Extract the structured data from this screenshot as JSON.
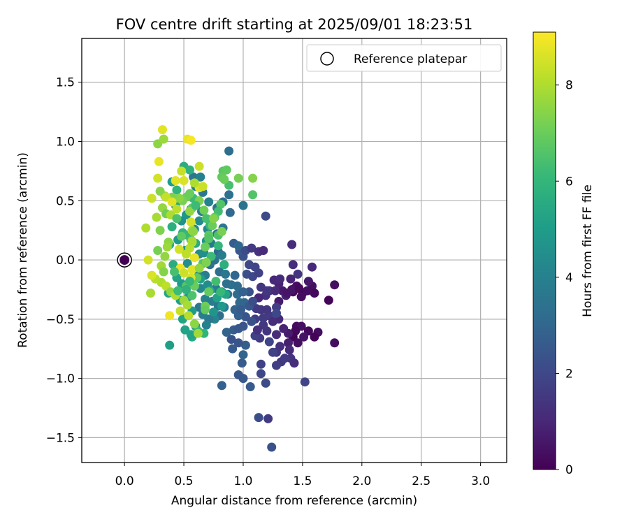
{
  "chart_data": {
    "type": "scatter",
    "title": "FOV centre drift starting at 2025/09/01 18:23:51",
    "xlabel": "Angular distance from reference (arcmin)",
    "ylabel": "Rotation from reference (arcmin)",
    "xlim": [
      -0.36,
      3.22
    ],
    "ylim": [
      -1.71,
      1.87
    ],
    "x_ticks": [
      "0.0",
      "0.5",
      "1.0",
      "1.5",
      "2.0",
      "2.5",
      "3.0"
    ],
    "x_tick_values": [
      0.0,
      0.5,
      1.0,
      1.5,
      2.0,
      2.5,
      3.0
    ],
    "y_ticks": [
      "1.5",
      "1.0",
      "0.5",
      "0.0",
      "−0.5",
      "−1.0",
      "−1.5"
    ],
    "y_tick_values": [
      1.5,
      1.0,
      0.5,
      0.0,
      -0.5,
      -1.0,
      -1.5
    ],
    "grid": true,
    "legend": {
      "placement": "top-right",
      "entries": [
        "Reference platepar"
      ]
    },
    "reference_point": {
      "x": 0.0,
      "y": 0.0
    },
    "colorbar": {
      "label": "Hours from first FF file",
      "ticks": [
        "0",
        "2",
        "4",
        "6",
        "8"
      ],
      "tick_values": [
        0,
        2,
        4,
        6,
        8
      ],
      "range": [
        0,
        9.1
      ],
      "colormap": "viridis"
    },
    "colormap_stops": [
      "#440154",
      "#482878",
      "#3e4989",
      "#31688e",
      "#26828e",
      "#1f9e89",
      "#35b779",
      "#6ece58",
      "#b5de2b",
      "#fde725"
    ],
    "points": [
      [
        1.42,
        -0.27,
        0.2
      ],
      [
        1.45,
        -0.22,
        0.3
      ],
      [
        1.5,
        -0.28,
        0.1
      ],
      [
        1.58,
        -0.22,
        0.4
      ],
      [
        1.6,
        -0.28,
        0.2
      ],
      [
        1.72,
        -0.34,
        0.1
      ],
      [
        1.77,
        -0.21,
        0.4
      ],
      [
        1.41,
        -0.25,
        0.5
      ],
      [
        1.33,
        -0.26,
        0.6
      ],
      [
        1.36,
        -0.3,
        0.8
      ],
      [
        1.3,
        -0.35,
        0.7
      ],
      [
        1.3,
        -0.2,
        0.9
      ],
      [
        1.26,
        -0.17,
        1.0
      ],
      [
        1.27,
        -0.26,
        1.1
      ],
      [
        1.22,
        -0.26,
        1.2
      ],
      [
        1.19,
        -0.3,
        1.3
      ],
      [
        1.13,
        -0.32,
        1.0
      ],
      [
        1.31,
        -0.16,
        1.1
      ],
      [
        1.4,
        -0.16,
        0.9
      ],
      [
        1.46,
        -0.12,
        1.4
      ],
      [
        1.42,
        -0.04,
        1.2
      ],
      [
        1.58,
        -0.06,
        1.0
      ],
      [
        1.49,
        -0.31,
        0.3
      ],
      [
        1.37,
        -0.28,
        0.5
      ],
      [
        1.47,
        -0.24,
        0.2
      ],
      [
        1.54,
        -0.26,
        0.3
      ],
      [
        1.55,
        -0.18,
        0.6
      ],
      [
        1.45,
        -0.56,
        0.3
      ],
      [
        1.49,
        -0.56,
        0.4
      ],
      [
        1.44,
        -0.6,
        0.2
      ],
      [
        1.42,
        -0.65,
        0.1
      ],
      [
        1.46,
        -0.7,
        0.3
      ],
      [
        1.55,
        -0.6,
        0.2
      ],
      [
        1.63,
        -0.61,
        0.3
      ],
      [
        1.6,
        -0.65,
        0.1
      ],
      [
        1.77,
        -0.7,
        0.3
      ],
      [
        1.51,
        -0.65,
        0.5
      ],
      [
        1.38,
        -0.62,
        0.7
      ],
      [
        1.34,
        -0.58,
        0.9
      ],
      [
        1.38,
        -0.7,
        0.8
      ],
      [
        1.3,
        -0.5,
        1.1
      ],
      [
        1.28,
        -0.63,
        1.2
      ],
      [
        1.31,
        -0.73,
        1.3
      ],
      [
        1.28,
        -0.78,
        1.4
      ],
      [
        1.32,
        -0.86,
        1.5
      ],
      [
        1.28,
        -0.89,
        1.7
      ],
      [
        1.4,
        -0.83,
        1.4
      ],
      [
        1.43,
        -0.87,
        1.2
      ],
      [
        1.39,
        -0.76,
        1.1
      ],
      [
        1.35,
        -0.83,
        1.6
      ],
      [
        1.25,
        -0.78,
        1.8
      ],
      [
        1.22,
        -0.69,
        1.9
      ],
      [
        1.2,
        -0.6,
        1.4
      ],
      [
        1.17,
        -0.55,
        1.5
      ],
      [
        1.14,
        -0.66,
        1.6
      ],
      [
        1.1,
        -0.64,
        1.8
      ],
      [
        1.12,
        -0.59,
        1.3
      ],
      [
        1.17,
        -0.49,
        1.6
      ],
      [
        1.1,
        -0.5,
        1.7
      ],
      [
        1.22,
        -0.47,
        1.6
      ],
      [
        1.25,
        -0.52,
        1.2
      ],
      [
        1.28,
        -0.4,
        1.7
      ],
      [
        1.28,
        -0.45,
        2.0
      ],
      [
        1.2,
        -0.42,
        1.5
      ],
      [
        1.15,
        -0.42,
        1.4
      ],
      [
        1.11,
        -0.41,
        1.6
      ],
      [
        1.15,
        -0.88,
        1.8
      ],
      [
        1.15,
        -0.96,
        2.0
      ],
      [
        1.19,
        -1.04,
        2.1
      ],
      [
        1.52,
        -1.03,
        1.9
      ],
      [
        1.13,
        -1.33,
        2.2
      ],
      [
        1.21,
        -1.34,
        1.6
      ],
      [
        1.24,
        -1.58,
        2.3
      ],
      [
        1.0,
        -1.0,
        2.5
      ],
      [
        1.06,
        -1.07,
        2.6
      ],
      [
        0.96,
        -0.97,
        2.5
      ],
      [
        0.82,
        -1.06,
        2.8
      ],
      [
        0.99,
        -0.87,
        2.6
      ],
      [
        1.0,
        -0.8,
        2.9
      ],
      [
        1.02,
        -0.72,
        2.7
      ],
      [
        0.96,
        -0.7,
        2.4
      ],
      [
        0.91,
        -0.75,
        2.6
      ],
      [
        0.9,
        -0.67,
        2.3
      ],
      [
        0.86,
        -0.61,
        2.9
      ],
      [
        0.92,
        -0.59,
        2.7
      ],
      [
        0.96,
        -0.58,
        2.5
      ],
      [
        1.0,
        -0.56,
        2.4
      ],
      [
        1.07,
        -0.52,
        2.3
      ],
      [
        1.02,
        -0.48,
        2.4
      ],
      [
        0.96,
        -0.47,
        2.8
      ],
      [
        0.93,
        -0.42,
        2.9
      ],
      [
        0.97,
        -0.36,
        3.1
      ],
      [
        1.01,
        -0.36,
        3.0
      ],
      [
        0.95,
        -0.29,
        3.2
      ],
      [
        0.98,
        -0.42,
        2.6
      ],
      [
        1.05,
        -0.39,
        2.5
      ],
      [
        1.08,
        -0.35,
        2.2
      ],
      [
        1.05,
        -0.27,
        2.3
      ],
      [
        1.0,
        -0.27,
        2.8
      ],
      [
        0.9,
        -0.21,
        3.3
      ],
      [
        0.95,
        -0.22,
        3.2
      ],
      [
        0.93,
        -0.13,
        3.0
      ],
      [
        1.03,
        -0.12,
        2.2
      ],
      [
        1.08,
        -0.14,
        2.0
      ],
      [
        1.13,
        -0.11,
        1.8
      ],
      [
        1.15,
        -0.23,
        1.4
      ],
      [
        1.2,
        -0.26,
        1.5
      ],
      [
        1.1,
        -0.06,
        1.9
      ],
      [
        1.05,
        -0.04,
        2.0
      ],
      [
        1.0,
        0.03,
        2.3
      ],
      [
        0.97,
        0.08,
        2.5
      ],
      [
        0.92,
        0.14,
        2.7
      ],
      [
        0.96,
        0.12,
        3.0
      ],
      [
        1.02,
        0.08,
        2.1
      ],
      [
        1.07,
        0.1,
        1.6
      ],
      [
        1.13,
        0.07,
        1.3
      ],
      [
        1.17,
        0.08,
        1.1
      ],
      [
        1.41,
        0.13,
        1.2
      ],
      [
        1.19,
        0.37,
        2.1
      ],
      [
        1.0,
        0.46,
        3.5
      ],
      [
        0.88,
        0.92,
        3.3
      ],
      [
        0.88,
        0.55,
        3.4
      ],
      [
        0.83,
        0.27,
        3.6
      ],
      [
        0.78,
        0.22,
        3.2
      ],
      [
        0.73,
        0.14,
        3.7
      ],
      [
        0.79,
        0.07,
        3.1
      ],
      [
        0.82,
        0.04,
        3.8
      ],
      [
        0.76,
        0.0,
        3.5
      ],
      [
        0.72,
        -0.04,
        3.4
      ],
      [
        0.8,
        -0.1,
        3.3
      ],
      [
        0.85,
        -0.12,
        3.6
      ],
      [
        0.86,
        -0.2,
        3.4
      ],
      [
        0.87,
        -0.29,
        3.7
      ],
      [
        0.82,
        -0.27,
        3.5
      ],
      [
        0.77,
        -0.24,
        3.8
      ],
      [
        0.74,
        -0.35,
        3.9
      ],
      [
        0.79,
        -0.39,
        3.6
      ],
      [
        0.84,
        -0.4,
        3.8
      ],
      [
        0.8,
        -0.47,
        3.2
      ],
      [
        0.76,
        -0.5,
        4.1
      ],
      [
        0.71,
        -0.5,
        3.7
      ],
      [
        0.66,
        -0.46,
        3.9
      ],
      [
        0.69,
        -0.55,
        4.0
      ],
      [
        0.63,
        -0.4,
        3.6
      ],
      [
        0.68,
        -0.33,
        4.0
      ],
      [
        0.64,
        -0.24,
        4.2
      ],
      [
        0.7,
        -0.21,
        4.4
      ],
      [
        0.68,
        -0.13,
        3.9
      ],
      [
        0.62,
        -0.09,
        4.1
      ],
      [
        0.63,
        0.05,
        4.3
      ],
      [
        0.67,
        0.06,
        4.5
      ],
      [
        0.7,
        0.26,
        4.2
      ],
      [
        0.63,
        0.33,
        4.4
      ],
      [
        0.65,
        0.41,
        3.8
      ],
      [
        0.71,
        0.49,
        4.0
      ],
      [
        0.66,
        0.57,
        3.6
      ],
      [
        0.6,
        0.62,
        3.9
      ],
      [
        0.58,
        0.7,
        3.6
      ],
      [
        0.64,
        0.7,
        4.0
      ],
      [
        0.73,
        0.31,
        3.5
      ],
      [
        0.78,
        0.44,
        3.3
      ],
      [
        0.83,
        0.49,
        3.4
      ],
      [
        0.89,
        0.4,
        3.1
      ],
      [
        0.69,
        0.16,
        4.6
      ],
      [
        0.59,
        0.26,
        4.3
      ],
      [
        0.56,
        0.43,
        4.5
      ],
      [
        0.52,
        0.38,
        4.8
      ],
      [
        0.48,
        0.33,
        4.6
      ],
      [
        0.45,
        0.17,
        4.9
      ],
      [
        0.51,
        0.08,
        4.7
      ],
      [
        0.53,
        -0.03,
        4.5
      ],
      [
        0.48,
        -0.2,
        4.9
      ],
      [
        0.54,
        -0.31,
        5.0
      ],
      [
        0.47,
        -0.34,
        5.1
      ],
      [
        0.57,
        -0.43,
        5.0
      ],
      [
        0.6,
        -0.56,
        4.8
      ],
      [
        0.51,
        -0.59,
        5.2
      ],
      [
        0.49,
        -0.5,
        5.3
      ],
      [
        0.57,
        -0.65,
        5.5
      ],
      [
        0.56,
        -0.63,
        5.2
      ],
      [
        0.38,
        -0.72,
        5.1
      ],
      [
        0.37,
        -0.28,
        5.4
      ],
      [
        0.44,
        -0.15,
        5.3
      ],
      [
        0.41,
        -0.04,
        5.6
      ],
      [
        0.38,
        0.13,
        5.5
      ],
      [
        0.4,
        0.28,
        5.7
      ],
      [
        0.43,
        0.46,
        5.2
      ],
      [
        0.44,
        0.59,
        5.9
      ],
      [
        0.4,
        0.66,
        5.0
      ],
      [
        0.5,
        0.79,
        5.6
      ],
      [
        0.55,
        0.76,
        5.8
      ],
      [
        0.49,
        0.23,
        5.9
      ],
      [
        0.53,
        0.21,
        6.1
      ],
      [
        0.56,
        0.17,
        6.3
      ],
      [
        0.6,
        0.14,
        5.6
      ],
      [
        0.64,
        -0.16,
        5.1
      ],
      [
        0.72,
        -0.26,
        5.4
      ],
      [
        0.78,
        -0.32,
        5.2
      ],
      [
        0.82,
        -0.39,
        4.9
      ],
      [
        0.85,
        -0.29,
        5.3
      ],
      [
        0.75,
        -0.44,
        4.7
      ],
      [
        0.67,
        -0.62,
        5.9
      ],
      [
        0.62,
        -0.6,
        6.1
      ],
      [
        0.88,
        0.63,
        6.4
      ],
      [
        0.83,
        0.75,
        6.7
      ],
      [
        0.82,
        0.7,
        6.9
      ],
      [
        0.84,
        0.68,
        7.0
      ],
      [
        0.86,
        0.76,
        6.8
      ],
      [
        0.81,
        0.47,
        6.6
      ],
      [
        0.79,
        0.41,
        6.3
      ],
      [
        0.72,
        0.29,
        6.0
      ],
      [
        0.69,
        0.35,
        6.4
      ],
      [
        0.76,
        0.36,
        6.7
      ],
      [
        0.79,
        0.21,
        6.5
      ],
      [
        0.71,
        0.21,
        6.8
      ],
      [
        0.68,
        0.11,
        7.0
      ],
      [
        0.73,
        0.03,
        6.2
      ],
      [
        0.66,
        -0.03,
        6.6
      ],
      [
        0.61,
        -0.15,
        6.8
      ],
      [
        0.59,
        -0.22,
        7.0
      ],
      [
        0.57,
        -0.3,
        6.5
      ],
      [
        0.68,
        -0.39,
        7.1
      ],
      [
        0.71,
        -0.27,
        6.9
      ],
      [
        0.77,
        -0.18,
        6.3
      ],
      [
        0.79,
        0.12,
        6.0
      ],
      [
        0.96,
        0.69,
        7.2
      ],
      [
        1.08,
        0.69,
        7.4
      ],
      [
        1.08,
        0.55,
        6.6
      ],
      [
        0.81,
        -0.27,
        6.1
      ],
      [
        0.84,
        -0.04,
        5.7
      ],
      [
        0.58,
        0.52,
        6.2
      ],
      [
        0.57,
        0.44,
        6.8
      ],
      [
        0.52,
        0.53,
        7.0
      ],
      [
        0.49,
        0.5,
        7.2
      ],
      [
        0.46,
        0.52,
        7.5
      ],
      [
        0.4,
        0.53,
        7.3
      ],
      [
        0.34,
        0.54,
        7.8
      ],
      [
        0.3,
        0.58,
        7.4
      ],
      [
        0.32,
        0.44,
        7.6
      ],
      [
        0.35,
        0.39,
        7.1
      ],
      [
        0.27,
        0.36,
        7.9
      ],
      [
        0.3,
        0.25,
        7.3
      ],
      [
        0.37,
        0.15,
        7.5
      ],
      [
        0.36,
        0.11,
        7.7
      ],
      [
        0.28,
        0.08,
        7.2
      ],
      [
        0.34,
        0.03,
        7.6
      ],
      [
        0.31,
        -0.05,
        7.8
      ],
      [
        0.33,
        -0.1,
        7.4
      ],
      [
        0.31,
        -0.19,
        8.0
      ],
      [
        0.26,
        -0.16,
        8.1
      ],
      [
        0.22,
        -0.28,
        7.9
      ],
      [
        0.35,
        -0.22,
        8.2
      ],
      [
        0.39,
        -0.27,
        7.6
      ],
      [
        0.43,
        -0.3,
        8.0
      ],
      [
        0.5,
        -0.34,
        7.7
      ],
      [
        0.53,
        -0.38,
        7.9
      ],
      [
        0.47,
        -0.43,
        8.3
      ],
      [
        0.54,
        -0.47,
        8.1
      ],
      [
        0.59,
        -0.54,
        7.5
      ],
      [
        0.62,
        -0.62,
        7.8
      ],
      [
        0.38,
        -0.47,
        8.9
      ],
      [
        0.2,
        0.0,
        8.5
      ],
      [
        0.23,
        -0.13,
        8.6
      ],
      [
        0.18,
        0.27,
        8.0
      ],
      [
        0.23,
        0.52,
        8.4
      ],
      [
        0.28,
        0.69,
        8.5
      ],
      [
        0.28,
        0.98,
        7.5
      ],
      [
        0.33,
        1.02,
        7.7
      ],
      [
        0.29,
        0.83,
        8.8
      ],
      [
        0.32,
        1.1,
        8.7
      ],
      [
        0.53,
        1.02,
        8.8
      ],
      [
        0.56,
        1.01,
        9.0
      ],
      [
        0.63,
        0.79,
        8.4
      ],
      [
        0.63,
        0.61,
        8.7
      ],
      [
        0.66,
        0.62,
        8.4
      ],
      [
        0.59,
        0.65,
        8.0
      ],
      [
        0.48,
        0.75,
        8.3
      ],
      [
        0.5,
        0.67,
        8.6
      ],
      [
        0.43,
        0.67,
        8.7
      ],
      [
        0.35,
        0.53,
        8.3
      ],
      [
        0.4,
        0.49,
        8.7
      ],
      [
        0.44,
        0.43,
        8.2
      ],
      [
        0.39,
        0.38,
        8.0
      ],
      [
        0.55,
        0.41,
        7.6
      ],
      [
        0.56,
        0.32,
        8.5
      ],
      [
        0.57,
        0.25,
        7.9
      ],
      [
        0.57,
        0.15,
        8.3
      ],
      [
        0.55,
        0.1,
        8.1
      ],
      [
        0.46,
        0.09,
        8.5
      ],
      [
        0.52,
        0.05,
        8.2
      ],
      [
        0.59,
        0.02,
        8.8
      ],
      [
        0.47,
        -0.07,
        8.9
      ],
      [
        0.5,
        -0.11,
        8.4
      ],
      [
        0.56,
        -0.15,
        8.6
      ],
      [
        0.57,
        -0.08,
        8.7
      ],
      [
        0.57,
        0.16,
        7.9
      ],
      [
        0.63,
        0.5,
        7.3
      ],
      [
        0.67,
        0.42,
        7.1
      ],
      [
        0.74,
        0.29,
        7.0
      ],
      [
        0.75,
        0.35,
        7.4
      ],
      [
        0.82,
        0.24,
        7.2
      ],
      [
        0.69,
        -0.02,
        7.3
      ],
      [
        0.63,
        -0.07,
        7.6
      ],
      [
        0.68,
        -0.42,
        6.9
      ],
      [
        0.55,
        0.56,
        7.0
      ],
      [
        0.71,
        0.18,
        6.6
      ],
      [
        0.6,
        0.46,
        6.2
      ],
      [
        0.58,
        0.24,
        7.5
      ],
      [
        0.48,
        0.2,
        6.8
      ],
      [
        0.44,
        0.35,
        6.5
      ],
      [
        0.42,
        -0.1,
        6.4
      ],
      [
        0.52,
        -0.22,
        6.7
      ],
      [
        0.45,
        -0.26,
        6.2
      ],
      [
        0.55,
        -0.18,
        6.1
      ],
      [
        0.52,
        -0.25,
        5.8
      ]
    ]
  }
}
